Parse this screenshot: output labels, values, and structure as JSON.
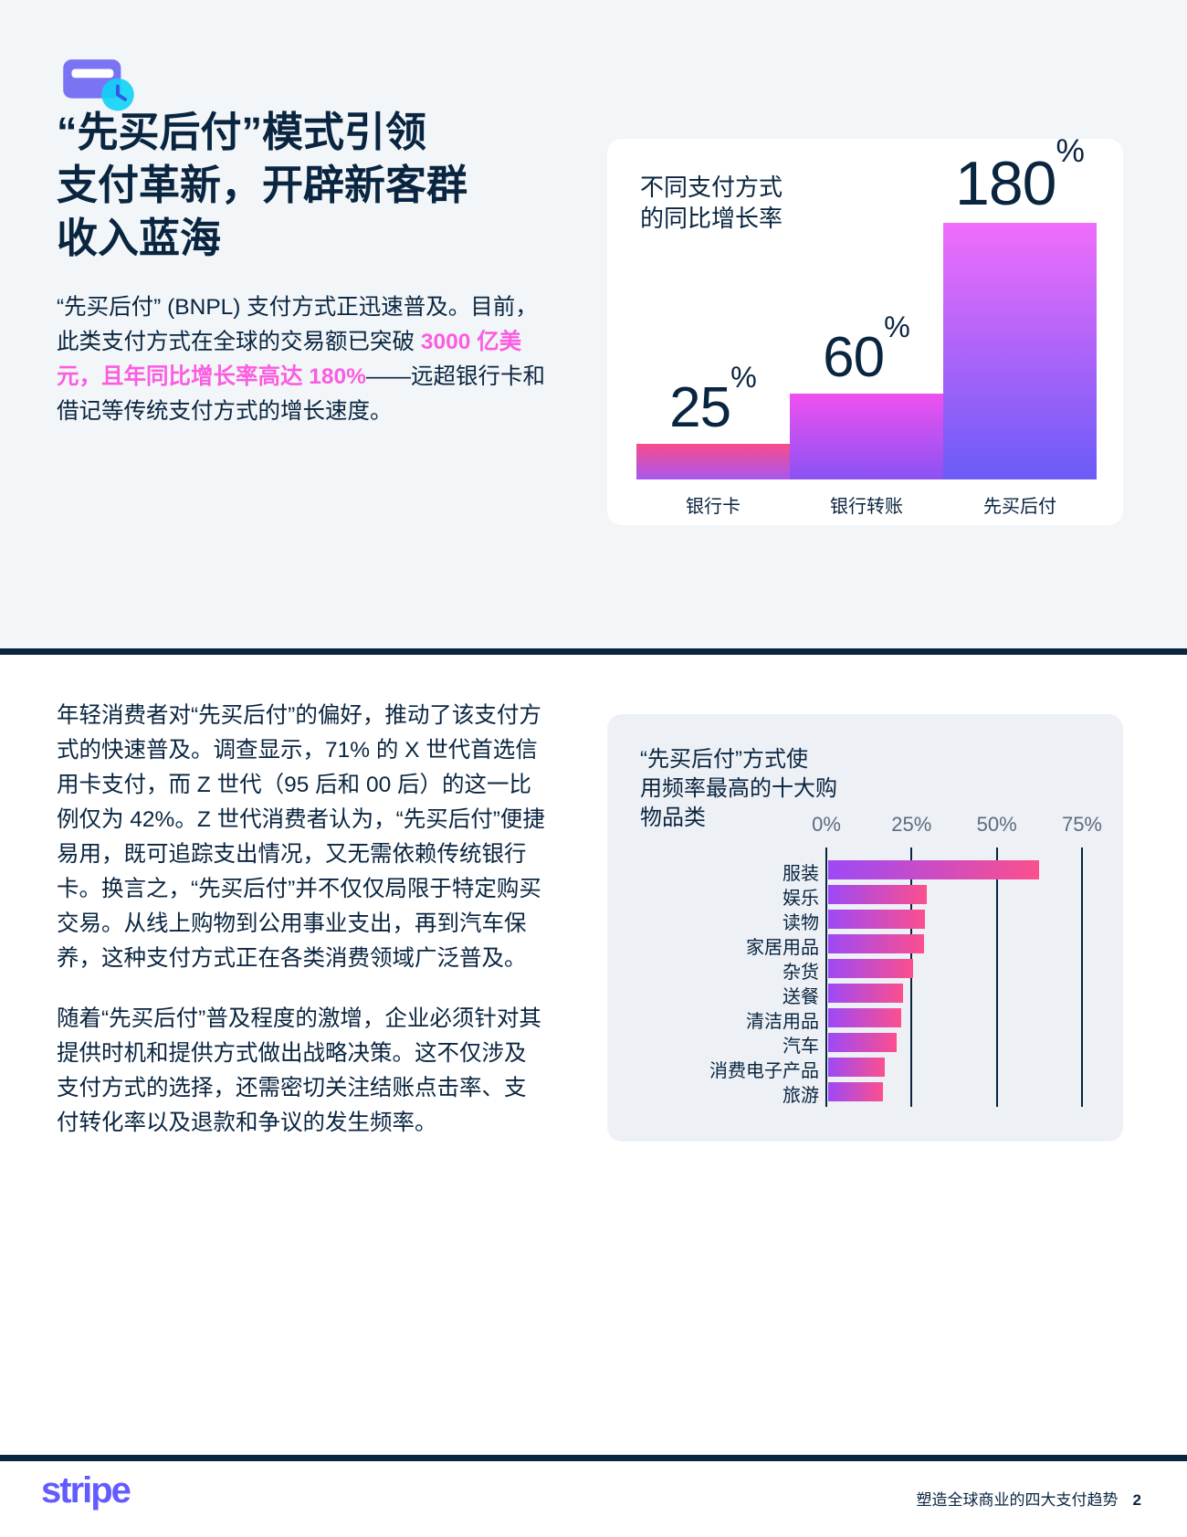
{
  "title_lines": [
    "“先买后付”模式引领",
    "支付革新，开辟新客群",
    "收入蓝海"
  ],
  "intro": {
    "before": "“先买后付” (BNPL) 支付方式正迅速普及。目前，此类支付方式在全球的交易额已突破 ",
    "highlight": "3000 亿美元，且年同比增长率高达 180%",
    "after": "——远超银行卡和借记等传统支付方式的增长速度。"
  },
  "body_paragraphs": [
    "年轻消费者对“先买后付”的偏好，推动了该支付方式的快速普及。调查显示，71% 的 X 世代首选信用卡支付，而 Z 世代（95 后和 00 后）的这一比例仅为 42%。Z 世代消费者认为，“先买后付”便捷易用，既可追踪支出情况，又无需依赖传统银行卡。换言之，“先买后付”并不仅仅局限于特定购买交易。从线上购物到公用事业支出，再到汽车保养，这种支付方式正在各类消费领域广泛普及。",
    "随着“先买后付”普及程度的激增，企业必须针对其提供时机和提供方式做出战略决策。这不仅涉及支付方式的选择，还需密切关注结账点击率、支付转化率以及退款和争议的发生频率。"
  ],
  "chart_data": [
    {
      "type": "bar",
      "title": "不同支付方式的同比增长率",
      "title_lines": [
        "不同支付方式",
        "的同比增长率"
      ],
      "categories": [
        "银行卡",
        "银行转账",
        "先买后付"
      ],
      "values": [
        25,
        60,
        180
      ],
      "unit": "%",
      "ylim": [
        0,
        180
      ],
      "grid": false,
      "bar_gradients": [
        [
          "#f94b8b",
          "#a757ef"
        ],
        [
          "#ef51ef",
          "#8a52f4"
        ],
        [
          "#f06dfb",
          "#6b5bf7"
        ]
      ]
    },
    {
      "type": "bar",
      "orientation": "horizontal",
      "title": "“先买后付”方式使用频率最高的十大购物品类",
      "title_lines": [
        "“先买后付”方式使",
        "用频率最高的十大购",
        "物品类"
      ],
      "categories": [
        "服装",
        "娱乐",
        "读物",
        "家居用品",
        "杂货",
        "送餐",
        "清洁用品",
        "汽车",
        "消费电子产品",
        "旅游"
      ],
      "values": [
        62,
        29,
        28.5,
        28,
        25,
        22,
        21.5,
        20,
        16.5,
        16
      ],
      "x_ticks": [
        "0%",
        "25%",
        "50%",
        "75%"
      ],
      "xlim": [
        0,
        75
      ],
      "grid": true,
      "bar_gradient": [
        "#9d49f6",
        "#fc4f8e"
      ]
    }
  ],
  "footer": {
    "logo": "stripe",
    "doc_title": "塑造全球商业的四大支付趋势",
    "page_number": "2"
  },
  "colors": {
    "navy": "#0a2540",
    "accent_pink": "#fb5de1",
    "stripe_purple": "#635bff",
    "top_background": "#f2f6f9",
    "card2_background": "#edf1f6",
    "icon_purple": "#7a73f3",
    "icon_cyan": "#10d3f6"
  }
}
